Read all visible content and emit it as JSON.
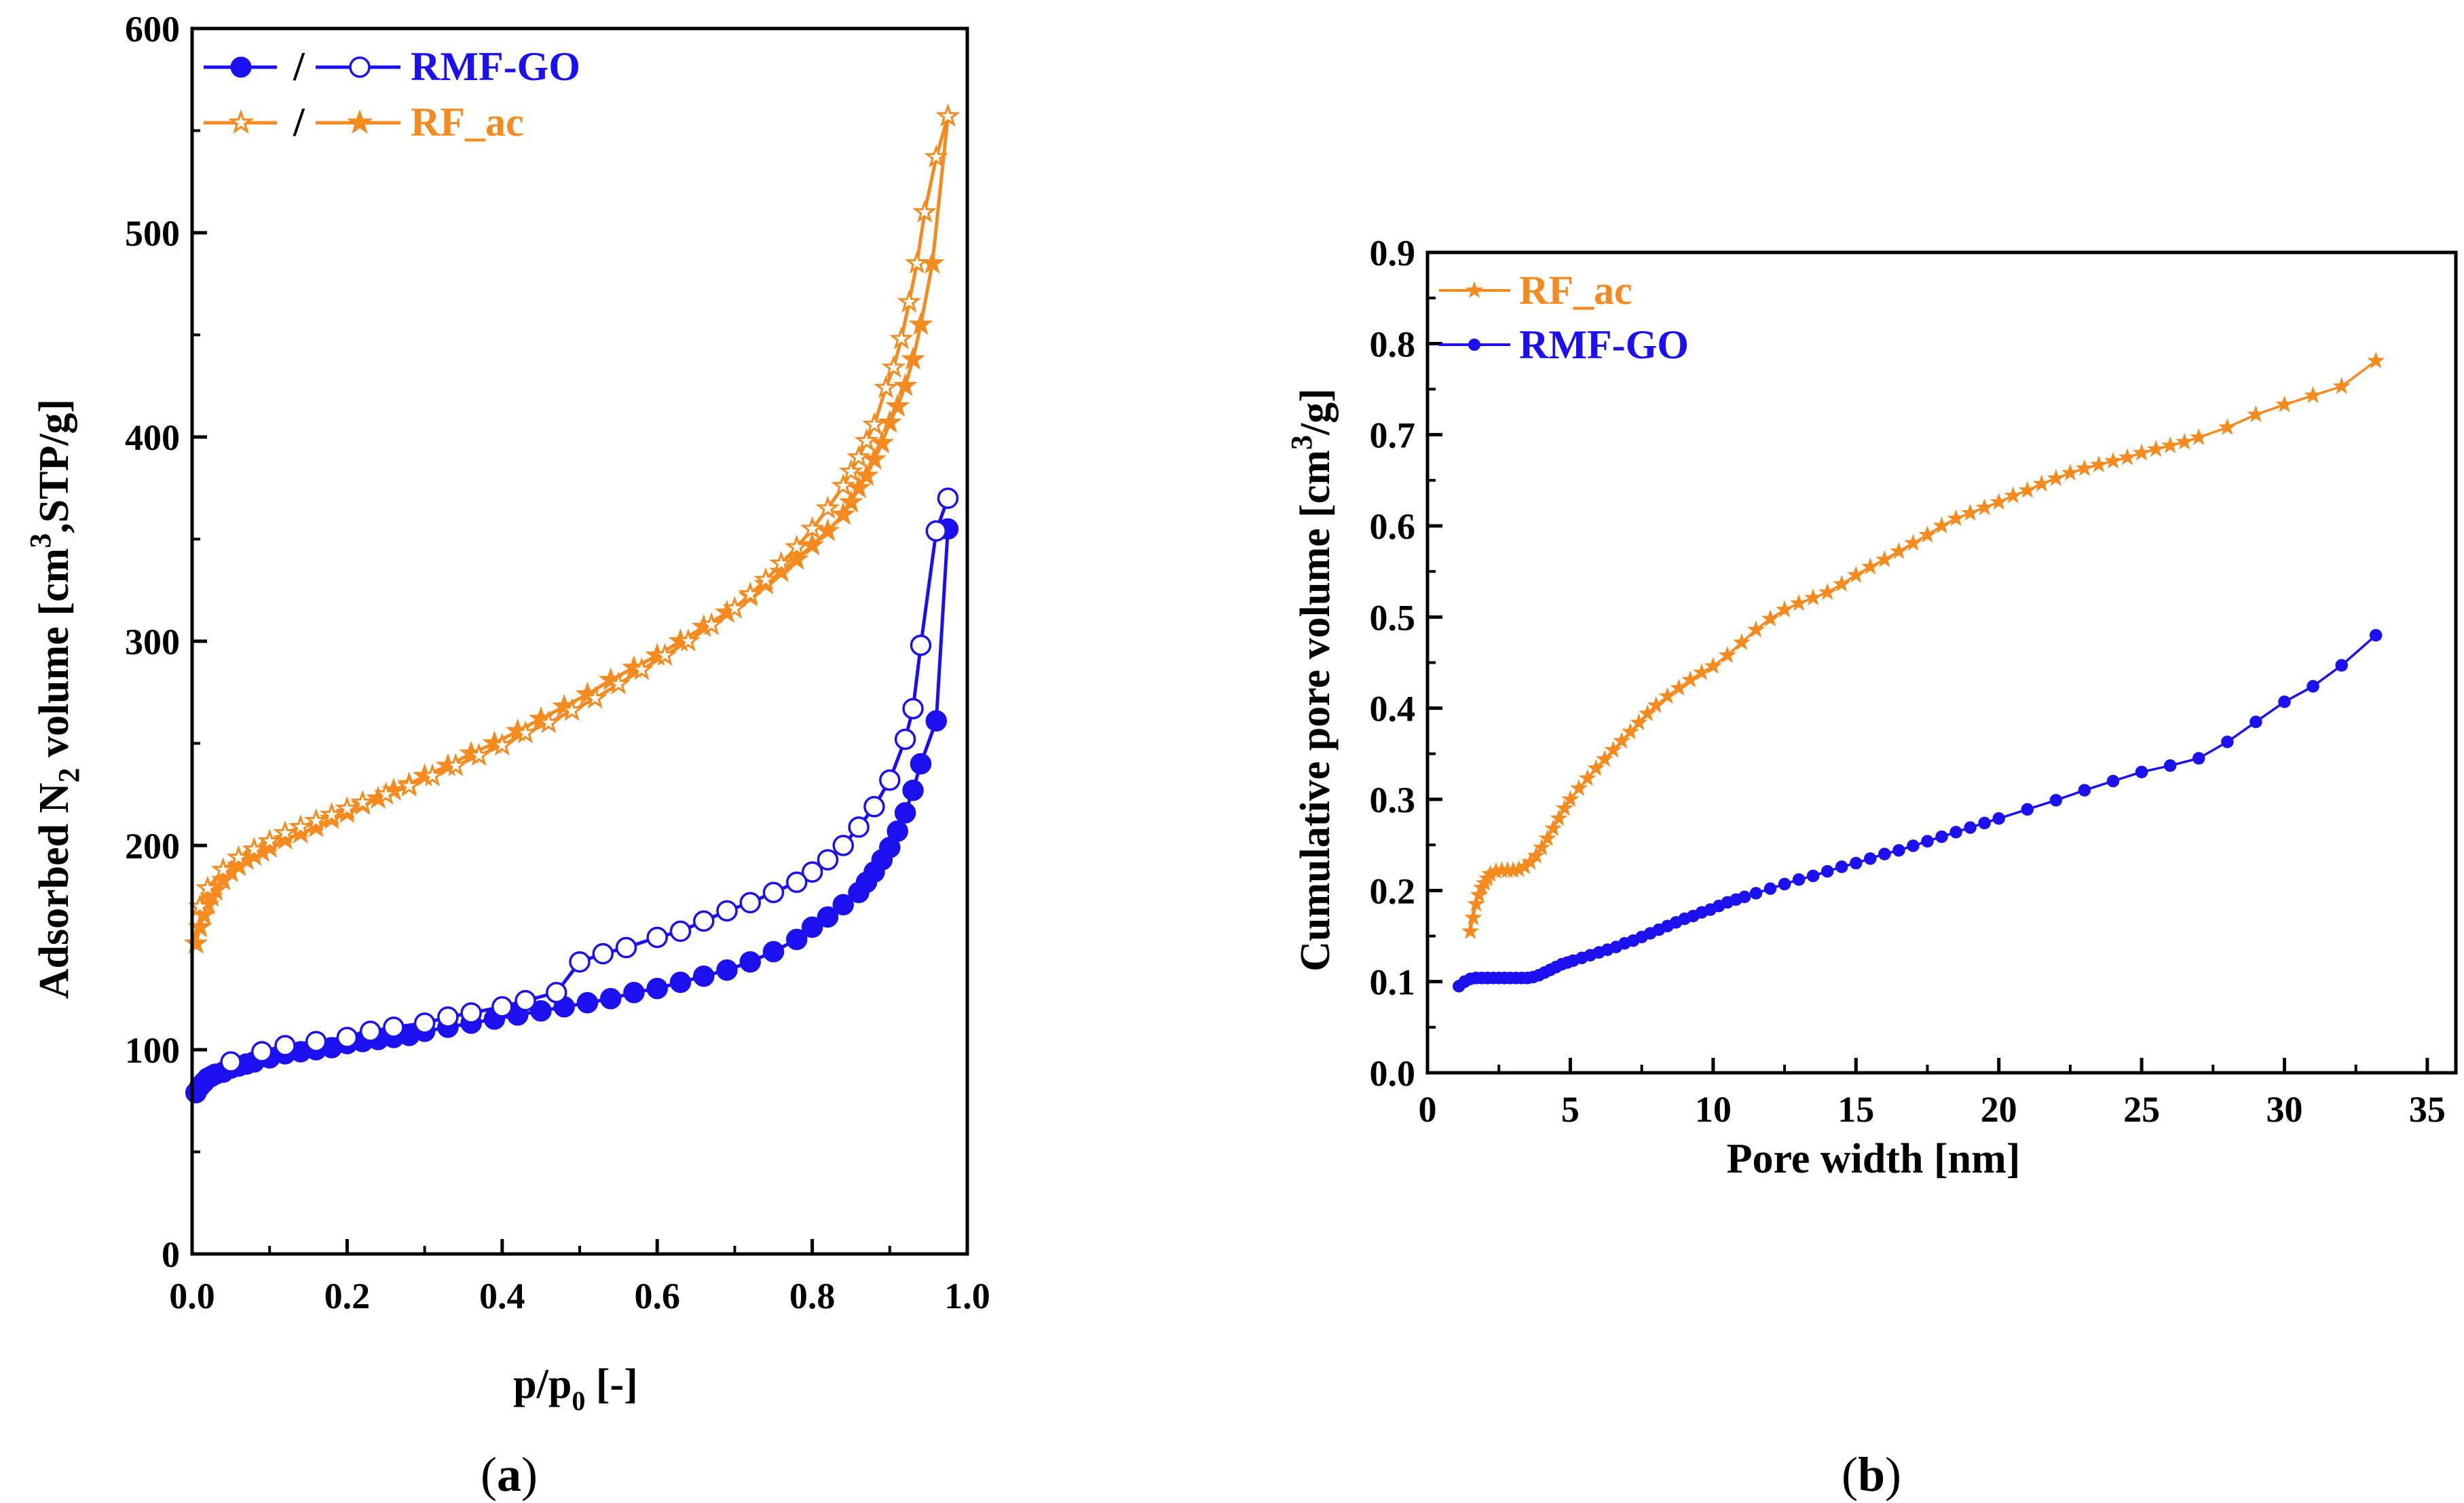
{
  "colors": {
    "blue": "#1a10f0",
    "orange": "#f58a1f",
    "axis": "#000000"
  },
  "chart_data": [
    {
      "type": "line",
      "panel_label": "(a)",
      "panel_letter": "a",
      "xlabel_main": "p/p",
      "xlabel_sub": "0",
      "xlabel_tail": " [-]",
      "ylabel_pre": "Adsorbed N",
      "ylabel_sub": "2",
      "ylabel_mid": " volume [cm",
      "ylabel_sup": "3",
      "ylabel_post": ",STP/g]",
      "xlim": [
        0.0,
        1.0
      ],
      "ylim": [
        0,
        600
      ],
      "xticks": [
        0.0,
        0.2,
        0.4,
        0.6,
        0.8,
        1.0
      ],
      "xtick_labels": [
        "0.0",
        "0.2",
        "0.4",
        "0.6",
        "0.8",
        "1.0"
      ],
      "yticks": [
        0,
        100,
        200,
        300,
        400,
        500,
        600
      ],
      "ytick_labels": [
        "0",
        "100",
        "200",
        "300",
        "400",
        "500",
        "600"
      ],
      "legend": [
        {
          "label": "RMF-GO",
          "separator": "/",
          "color": "#1a10f0",
          "marker": "circle"
        },
        {
          "label": "RF_ac",
          "separator": "/",
          "color": "#f58a1f",
          "marker": "star"
        }
      ],
      "series": [
        {
          "sample": "RMF-GO",
          "branch": "adsorption",
          "color": "#1a10f0",
          "marker": "circle",
          "filled": true,
          "x": [
            0.005,
            0.01,
            0.015,
            0.02,
            0.025,
            0.03,
            0.04,
            0.05,
            0.06,
            0.07,
            0.08,
            0.1,
            0.12,
            0.14,
            0.16,
            0.18,
            0.2,
            0.22,
            0.24,
            0.26,
            0.28,
            0.3,
            0.33,
            0.36,
            0.39,
            0.42,
            0.45,
            0.48,
            0.51,
            0.54,
            0.57,
            0.6,
            0.63,
            0.66,
            0.69,
            0.72,
            0.75,
            0.78,
            0.8,
            0.82,
            0.84,
            0.86,
            0.87,
            0.88,
            0.89,
            0.9,
            0.91,
            0.92,
            0.93,
            0.94,
            0.96,
            0.975
          ],
          "y": [
            79,
            82,
            84,
            86,
            87,
            88,
            89,
            91,
            92,
            93,
            94,
            96,
            98,
            99,
            100,
            101,
            103,
            104,
            105,
            106,
            107,
            109,
            111,
            113,
            115,
            117,
            119,
            121,
            123,
            125,
            128,
            130,
            133,
            136,
            139,
            143,
            148,
            154,
            160,
            165,
            171,
            177,
            182,
            187,
            193,
            199,
            207,
            216,
            227,
            240,
            261,
            355
          ]
        },
        {
          "sample": "RMF-GO",
          "branch": "desorption",
          "color": "#1a10f0",
          "marker": "circle",
          "filled": false,
          "x": [
            0.975,
            0.96,
            0.94,
            0.93,
            0.92,
            0.9,
            0.88,
            0.86,
            0.84,
            0.82,
            0.8,
            0.78,
            0.75,
            0.72,
            0.69,
            0.66,
            0.63,
            0.6,
            0.56,
            0.53,
            0.5,
            0.47,
            0.43,
            0.4,
            0.36,
            0.33,
            0.3,
            0.26,
            0.23,
            0.2,
            0.16,
            0.12,
            0.09,
            0.05
          ],
          "y": [
            370,
            354,
            298,
            267,
            252,
            232,
            219,
            209,
            200,
            193,
            187,
            182,
            177,
            172,
            168,
            163,
            158,
            155,
            150,
            147,
            143,
            128,
            124,
            121,
            118,
            116,
            113,
            111,
            109,
            106,
            104,
            102,
            99,
            94
          ]
        },
        {
          "sample": "RF_ac",
          "branch": "adsorption",
          "color": "#f58a1f",
          "marker": "star",
          "filled": true,
          "x": [
            0.005,
            0.01,
            0.015,
            0.02,
            0.025,
            0.03,
            0.04,
            0.05,
            0.06,
            0.07,
            0.08,
            0.09,
            0.1,
            0.12,
            0.14,
            0.16,
            0.18,
            0.2,
            0.22,
            0.24,
            0.26,
            0.28,
            0.3,
            0.33,
            0.36,
            0.39,
            0.42,
            0.45,
            0.48,
            0.51,
            0.54,
            0.57,
            0.6,
            0.63,
            0.66,
            0.69,
            0.72,
            0.74,
            0.76,
            0.78,
            0.8,
            0.82,
            0.84,
            0.85,
            0.86,
            0.87,
            0.88,
            0.89,
            0.9,
            0.91,
            0.92,
            0.93,
            0.94,
            0.955,
            0.975
          ],
          "y": [
            152,
            160,
            166,
            171,
            175,
            178,
            183,
            187,
            190,
            193,
            195,
            197,
            199,
            203,
            206,
            209,
            213,
            216,
            220,
            223,
            227,
            230,
            234,
            239,
            245,
            250,
            256,
            262,
            268,
            274,
            281,
            287,
            293,
            300,
            307,
            314,
            322,
            328,
            334,
            340,
            347,
            354,
            362,
            368,
            375,
            381,
            389,
            397,
            407,
            415,
            425,
            438,
            455,
            485,
            557
          ]
        },
        {
          "sample": "RF_ac",
          "branch": "desorption",
          "color": "#f58a1f",
          "marker": "star",
          "filled": false,
          "x": [
            0.975,
            0.96,
            0.945,
            0.935,
            0.925,
            0.915,
            0.905,
            0.895,
            0.88,
            0.87,
            0.86,
            0.85,
            0.84,
            0.82,
            0.8,
            0.78,
            0.76,
            0.74,
            0.72,
            0.7,
            0.67,
            0.64,
            0.61,
            0.58,
            0.55,
            0.52,
            0.49,
            0.46,
            0.43,
            0.4,
            0.37,
            0.34,
            0.31,
            0.28,
            0.25,
            0.22,
            0.2,
            0.18,
            0.16,
            0.14,
            0.12,
            0.1,
            0.08,
            0.06,
            0.04,
            0.02,
            0.01
          ],
          "y": [
            557,
            537,
            510,
            485,
            466,
            448,
            434,
            424,
            406,
            398,
            390,
            383,
            376,
            365,
            355,
            346,
            338,
            330,
            323,
            316,
            308,
            300,
            293,
            286,
            279,
            272,
            266,
            260,
            255,
            249,
            244,
            239,
            234,
            229,
            225,
            221,
            218,
            215,
            212,
            209,
            206,
            202,
            198,
            194,
            188,
            179,
            170
          ]
        }
      ]
    },
    {
      "type": "line",
      "panel_label": "(b)",
      "panel_letter": "b",
      "xlabel": "Pore width [nm]",
      "ylabel_pre": "Cumulative pore volume [cm",
      "ylabel_sup": "3",
      "ylabel_post": "/g]",
      "xlim": [
        0,
        36
      ],
      "ylim": [
        0.0,
        0.9
      ],
      "xticks": [
        0,
        5,
        10,
        15,
        20,
        25,
        30,
        35
      ],
      "xtick_labels": [
        "0",
        "5",
        "10",
        "15",
        "20",
        "25",
        "30",
        "35"
      ],
      "yticks": [
        0.0,
        0.1,
        0.2,
        0.3,
        0.4,
        0.5,
        0.6,
        0.7,
        0.8,
        0.9
      ],
      "ytick_labels": [
        "0.0",
        "0.1",
        "0.2",
        "0.3",
        "0.4",
        "0.5",
        "0.6",
        "0.7",
        "0.8",
        "0.9"
      ],
      "legend": [
        {
          "label": "RF_ac",
          "color": "#f58a1f",
          "marker": "star"
        },
        {
          "label": "RMF-GO",
          "color": "#1a10f0",
          "marker": "circle"
        }
      ],
      "series": [
        {
          "name": "RF_ac",
          "color": "#f58a1f",
          "marker": "star",
          "x": [
            1.5,
            1.6,
            1.7,
            1.8,
            1.9,
            2.0,
            2.1,
            2.2,
            2.4,
            2.6,
            2.8,
            3.0,
            3.2,
            3.4,
            3.6,
            3.8,
            4.0,
            4.2,
            4.4,
            4.6,
            4.8,
            5.0,
            5.3,
            5.6,
            5.9,
            6.2,
            6.5,
            6.8,
            7.1,
            7.4,
            7.7,
            8.0,
            8.4,
            8.8,
            9.2,
            9.6,
            10.0,
            10.5,
            11.0,
            11.5,
            12.0,
            12.5,
            13.0,
            13.5,
            14.0,
            14.5,
            15.0,
            15.5,
            16.0,
            16.5,
            17.0,
            17.5,
            18.0,
            18.5,
            19.0,
            19.5,
            20.0,
            20.5,
            21.0,
            21.5,
            22.0,
            22.5,
            23.0,
            23.5,
            24.0,
            24.5,
            25.0,
            25.5,
            26.0,
            26.5,
            27.0,
            28.0,
            29.0,
            30.0,
            31.0,
            32.0,
            33.2
          ],
          "y": [
            0.155,
            0.17,
            0.185,
            0.195,
            0.203,
            0.208,
            0.213,
            0.218,
            0.221,
            0.222,
            0.222,
            0.222,
            0.223,
            0.226,
            0.231,
            0.238,
            0.247,
            0.257,
            0.268,
            0.279,
            0.29,
            0.3,
            0.312,
            0.323,
            0.334,
            0.344,
            0.354,
            0.364,
            0.374,
            0.384,
            0.394,
            0.403,
            0.413,
            0.422,
            0.431,
            0.439,
            0.446,
            0.458,
            0.472,
            0.486,
            0.498,
            0.508,
            0.515,
            0.521,
            0.527,
            0.536,
            0.546,
            0.555,
            0.563,
            0.572,
            0.581,
            0.59,
            0.6,
            0.608,
            0.614,
            0.62,
            0.626,
            0.633,
            0.639,
            0.646,
            0.652,
            0.658,
            0.663,
            0.667,
            0.671,
            0.675,
            0.68,
            0.684,
            0.688,
            0.692,
            0.697,
            0.708,
            0.722,
            0.733,
            0.743,
            0.753,
            0.781
          ]
        },
        {
          "name": "RMF-GO",
          "color": "#1a10f0",
          "marker": "circle",
          "x": [
            1.1,
            1.3,
            1.5,
            1.7,
            1.9,
            2.1,
            2.3,
            2.5,
            2.7,
            2.9,
            3.1,
            3.3,
            3.5,
            3.7,
            3.9,
            4.1,
            4.3,
            4.5,
            4.7,
            4.9,
            5.1,
            5.4,
            5.7,
            6.0,
            6.3,
            6.6,
            6.9,
            7.2,
            7.5,
            7.8,
            8.1,
            8.4,
            8.7,
            9.0,
            9.3,
            9.6,
            9.9,
            10.2,
            10.5,
            10.8,
            11.1,
            11.5,
            12.0,
            12.5,
            13.0,
            13.5,
            14.0,
            14.5,
            15.0,
            15.5,
            16.0,
            16.5,
            17.0,
            17.5,
            18.0,
            18.5,
            19.0,
            19.5,
            20.0,
            21.0,
            22.0,
            23.0,
            24.0,
            25.0,
            26.0,
            27.0,
            28.0,
            29.0,
            30.0,
            31.0,
            32.0,
            33.2
          ],
          "y": [
            0.095,
            0.1,
            0.103,
            0.104,
            0.104,
            0.104,
            0.104,
            0.104,
            0.104,
            0.104,
            0.104,
            0.104,
            0.104,
            0.105,
            0.107,
            0.11,
            0.113,
            0.116,
            0.119,
            0.121,
            0.123,
            0.126,
            0.129,
            0.132,
            0.135,
            0.138,
            0.142,
            0.145,
            0.149,
            0.153,
            0.157,
            0.161,
            0.165,
            0.169,
            0.172,
            0.176,
            0.179,
            0.183,
            0.187,
            0.19,
            0.193,
            0.197,
            0.202,
            0.207,
            0.212,
            0.216,
            0.221,
            0.226,
            0.23,
            0.235,
            0.24,
            0.244,
            0.249,
            0.254,
            0.259,
            0.264,
            0.269,
            0.274,
            0.279,
            0.289,
            0.299,
            0.31,
            0.32,
            0.33,
            0.337,
            0.345,
            0.363,
            0.385,
            0.407,
            0.424,
            0.447,
            0.48
          ]
        }
      ]
    }
  ]
}
